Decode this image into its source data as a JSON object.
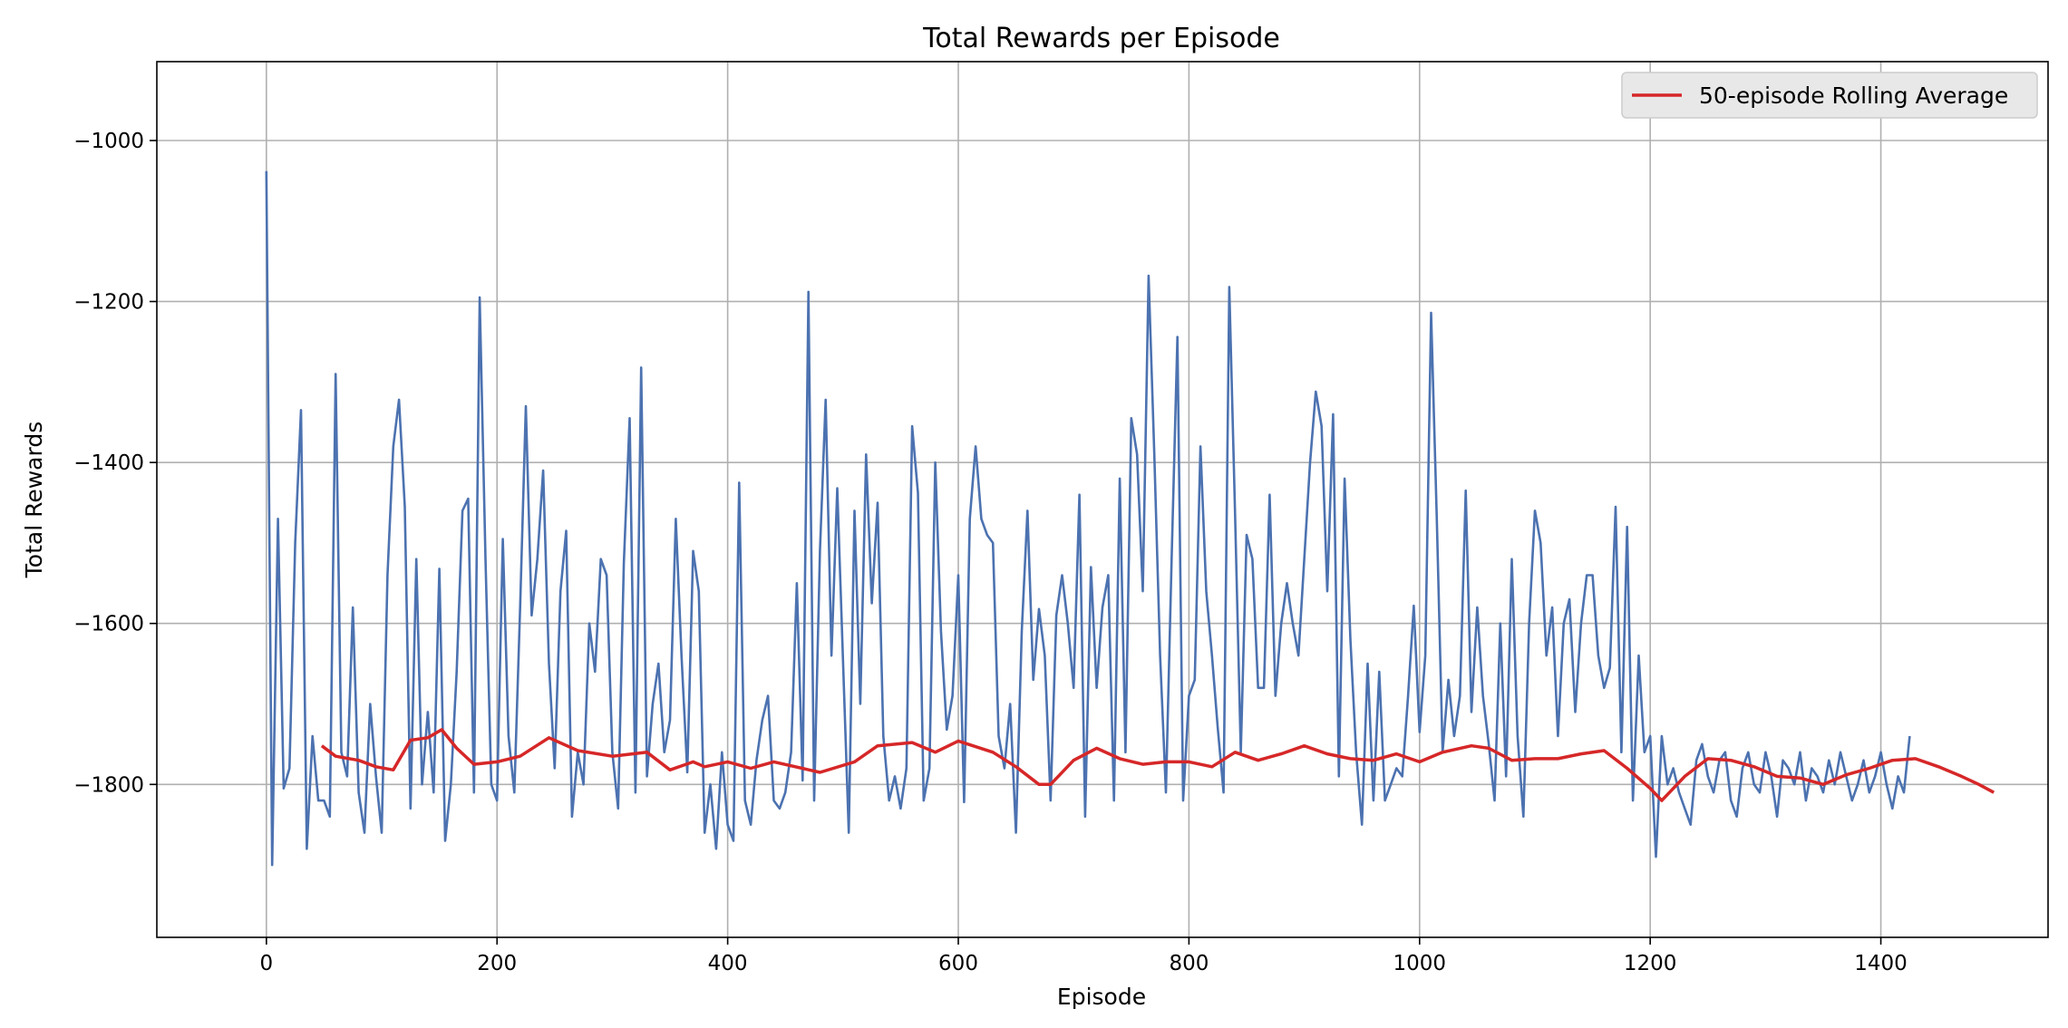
{
  "chart_data": {
    "type": "line",
    "title": "Total Rewards per Episode",
    "xlabel": "Episode",
    "ylabel": "Total Rewards",
    "xlim": [
      -95,
      1545
    ],
    "ylim": [
      -1990,
      -902
    ],
    "x_ticks": [
      0,
      200,
      400,
      600,
      800,
      1000,
      1200,
      1400
    ],
    "y_ticks": [
      -1800,
      -1600,
      -1400,
      -1200,
      -1000
    ],
    "grid": true,
    "legend": {
      "placement": "top-right",
      "entries": [
        "50-episode Rolling Average"
      ]
    },
    "series": [
      {
        "kind": "raw",
        "color": "#4c72b0",
        "x_start": 0,
        "x_step": 5,
        "values": [
          -1038,
          -1900,
          -1470,
          -1805,
          -1780,
          -1500,
          -1335,
          -1880,
          -1740,
          -1820,
          -1820,
          -1840,
          -1290,
          -1760,
          -1790,
          -1580,
          -1810,
          -1860,
          -1700,
          -1790,
          -1860,
          -1540,
          -1380,
          -1322,
          -1455,
          -1830,
          -1520,
          -1800,
          -1710,
          -1810,
          -1532,
          -1870,
          -1800,
          -1660,
          -1460,
          -1445,
          -1810,
          -1195,
          -1520,
          -1800,
          -1820,
          -1495,
          -1740,
          -1810,
          -1580,
          -1330,
          -1590,
          -1520,
          -1410,
          -1650,
          -1780,
          -1560,
          -1485,
          -1840,
          -1760,
          -1800,
          -1600,
          -1660,
          -1520,
          -1540,
          -1760,
          -1830,
          -1525,
          -1345,
          -1810,
          -1282,
          -1790,
          -1700,
          -1650,
          -1760,
          -1720,
          -1470,
          -1640,
          -1785,
          -1510,
          -1560,
          -1860,
          -1800,
          -1880,
          -1760,
          -1850,
          -1870,
          -1425,
          -1820,
          -1850,
          -1770,
          -1720,
          -1690,
          -1820,
          -1830,
          -1810,
          -1760,
          -1550,
          -1795,
          -1188,
          -1820,
          -1510,
          -1322,
          -1640,
          -1432,
          -1645,
          -1860,
          -1460,
          -1700,
          -1390,
          -1575,
          -1450,
          -1740,
          -1820,
          -1790,
          -1830,
          -1780,
          -1355,
          -1438,
          -1820,
          -1780,
          -1400,
          -1610,
          -1732,
          -1690,
          -1540,
          -1822,
          -1470,
          -1380,
          -1470,
          -1490,
          -1500,
          -1740,
          -1780,
          -1700,
          -1860,
          -1610,
          -1460,
          -1670,
          -1582,
          -1640,
          -1820,
          -1590,
          -1540,
          -1600,
          -1680,
          -1440,
          -1840,
          -1530,
          -1680,
          -1580,
          -1540,
          -1820,
          -1420,
          -1760,
          -1345,
          -1390,
          -1560,
          -1168,
          -1390,
          -1640,
          -1810,
          -1520,
          -1244,
          -1820,
          -1690,
          -1670,
          -1380,
          -1560,
          -1640,
          -1730,
          -1810,
          -1182,
          -1465,
          -1760,
          -1490,
          -1520,
          -1680,
          -1680,
          -1440,
          -1690,
          -1600,
          -1550,
          -1600,
          -1640,
          -1520,
          -1400,
          -1312,
          -1355,
          -1560,
          -1340,
          -1790,
          -1420,
          -1620,
          -1760,
          -1850,
          -1650,
          -1820,
          -1660,
          -1820,
          -1800,
          -1780,
          -1790,
          -1690,
          -1578,
          -1735,
          -1640,
          -1214,
          -1475,
          -1760,
          -1670,
          -1740,
          -1690,
          -1435,
          -1710,
          -1580,
          -1690,
          -1750,
          -1820,
          -1600,
          -1790,
          -1520,
          -1740,
          -1840,
          -1600,
          -1460,
          -1500,
          -1640,
          -1580,
          -1740,
          -1600,
          -1570,
          -1710,
          -1600,
          -1540,
          -1540,
          -1640,
          -1680,
          -1655,
          -1455,
          -1760,
          -1480,
          -1820,
          -1640,
          -1760,
          -1740,
          -1890,
          -1740,
          -1800,
          -1780,
          -1810,
          -1830,
          -1850,
          -1770,
          -1750,
          -1790,
          -1810,
          -1770,
          -1760,
          -1820,
          -1840,
          -1780,
          -1760,
          -1800,
          -1810,
          -1760,
          -1790,
          -1840,
          -1770,
          -1780,
          -1800,
          -1760,
          -1820,
          -1780,
          -1790,
          -1810,
          -1770,
          -1800,
          -1760,
          -1790,
          -1820,
          -1800,
          -1770,
          -1810,
          -1790,
          -1760,
          -1800,
          -1830,
          -1790,
          -1810,
          -1740
        ]
      },
      {
        "kind": "rolling",
        "name": "50-episode Rolling Average",
        "color": "#d62728",
        "x": [
          48,
          60,
          80,
          95,
          110,
          125,
          140,
          152,
          165,
          180,
          200,
          220,
          245,
          270,
          300,
          330,
          350,
          370,
          380,
          400,
          420,
          440,
          480,
          510,
          530,
          560,
          580,
          600,
          630,
          650,
          670,
          680,
          700,
          720,
          740,
          760,
          780,
          800,
          820,
          840,
          860,
          880,
          900,
          920,
          940,
          960,
          980,
          1000,
          1020,
          1045,
          1060,
          1080,
          1100,
          1120,
          1140,
          1160,
          1180,
          1200,
          1210,
          1230,
          1250,
          1270,
          1290,
          1310,
          1330,
          1350,
          1370,
          1390,
          1410,
          1430,
          1450,
          1470,
          1485,
          1498
        ],
        "y": [
          -1752,
          -1765,
          -1770,
          -1778,
          -1782,
          -1745,
          -1742,
          -1732,
          -1755,
          -1775,
          -1772,
          -1765,
          -1742,
          -1758,
          -1765,
          -1760,
          -1782,
          -1772,
          -1778,
          -1772,
          -1780,
          -1772,
          -1785,
          -1772,
          -1752,
          -1748,
          -1760,
          -1746,
          -1760,
          -1778,
          -1800,
          -1800,
          -1770,
          -1755,
          -1768,
          -1775,
          -1772,
          -1772,
          -1778,
          -1760,
          -1770,
          -1762,
          -1752,
          -1762,
          -1768,
          -1770,
          -1762,
          -1772,
          -1760,
          -1752,
          -1755,
          -1770,
          -1768,
          -1768,
          -1762,
          -1758,
          -1780,
          -1805,
          -1820,
          -1790,
          -1768,
          -1770,
          -1778,
          -1790,
          -1792,
          -1800,
          -1788,
          -1780,
          -1770,
          -1768,
          -1778,
          -1790,
          -1800,
          -1810
        ]
      }
    ]
  }
}
